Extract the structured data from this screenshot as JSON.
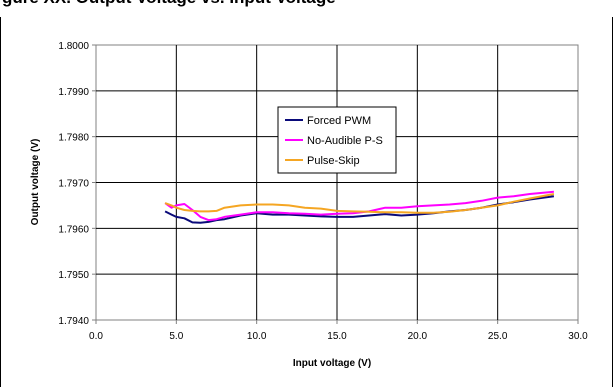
{
  "page": {
    "title_fragment": "gure XX. Output Voltage vs. Input Voltage"
  },
  "chart_data": {
    "type": "line",
    "xlabel": "Input voltage (V)",
    "ylabel": "Output voltage (V)",
    "xlim": [
      0,
      30
    ],
    "ylim": [
      1.794,
      1.8
    ],
    "x_ticks": [
      0,
      5,
      10,
      15,
      20,
      25,
      30
    ],
    "x_tick_labels": [
      "0.0",
      "5.0",
      "10.0",
      "15.0",
      "20.0",
      "25.0",
      "30.0"
    ],
    "y_ticks": [
      1.794,
      1.795,
      1.796,
      1.797,
      1.798,
      1.799,
      1.8
    ],
    "y_tick_labels": [
      "1.7940",
      "1.7950",
      "1.7960",
      "1.7970",
      "1.7980",
      "1.7990",
      "1.8000"
    ],
    "grid": true,
    "legend_position": "center-top",
    "series": [
      {
        "name": "Forced PWM",
        "color": "#0a0a7a",
        "x": [
          4.3,
          4.7,
          5.0,
          5.5,
          6.0,
          6.5,
          7.0,
          7.5,
          8.0,
          9.0,
          10.0,
          11.0,
          12.0,
          13.0,
          14.0,
          15.0,
          16.0,
          17.0,
          18.0,
          19.0,
          20.0,
          21.0,
          22.0,
          23.0,
          24.0,
          25.0,
          26.0,
          27.0,
          28.5
        ],
        "values": [
          1.79637,
          1.7963,
          1.79625,
          1.79622,
          1.79613,
          1.79612,
          1.79614,
          1.79618,
          1.7962,
          1.79628,
          1.79633,
          1.7963,
          1.7963,
          1.79628,
          1.79626,
          1.79625,
          1.79625,
          1.79628,
          1.79631,
          1.79628,
          1.7963,
          1.79633,
          1.79637,
          1.7964,
          1.79645,
          1.79652,
          1.79657,
          1.79663,
          1.7967
        ]
      },
      {
        "name": "No-Audible P-S",
        "color": "#ff00ff",
        "x": [
          4.3,
          4.7,
          5.0,
          5.5,
          6.0,
          6.5,
          7.0,
          7.5,
          8.0,
          9.0,
          10.0,
          11.0,
          12.0,
          13.0,
          14.0,
          15.0,
          16.0,
          17.0,
          18.0,
          19.0,
          20.0,
          21.0,
          22.0,
          23.0,
          24.0,
          25.0,
          26.0,
          27.0,
          28.5
        ],
        "values": [
          1.79655,
          1.79645,
          1.7965,
          1.79653,
          1.7964,
          1.79625,
          1.79618,
          1.7962,
          1.79625,
          1.7963,
          1.79635,
          1.79635,
          1.79633,
          1.79632,
          1.7963,
          1.79632,
          1.79633,
          1.79637,
          1.79645,
          1.79645,
          1.79648,
          1.7965,
          1.79652,
          1.79655,
          1.7966,
          1.79667,
          1.7967,
          1.79675,
          1.7968
        ]
      },
      {
        "name": "Pulse-Skip",
        "color": "#f5a623",
        "x": [
          4.3,
          4.7,
          5.0,
          5.5,
          6.0,
          6.5,
          7.0,
          7.5,
          8.0,
          9.0,
          10.0,
          11.0,
          12.0,
          13.0,
          14.0,
          15.0,
          16.0,
          17.0,
          18.0,
          19.0,
          20.0,
          21.0,
          22.0,
          23.0,
          24.0,
          25.0,
          26.0,
          27.0,
          28.5
        ],
        "values": [
          1.79655,
          1.7965,
          1.79645,
          1.7964,
          1.79638,
          1.79637,
          1.79637,
          1.79638,
          1.79645,
          1.7965,
          1.79652,
          1.79652,
          1.7965,
          1.79645,
          1.79643,
          1.79638,
          1.79637,
          1.79636,
          1.79635,
          1.79635,
          1.79634,
          1.79634,
          1.79636,
          1.7964,
          1.79645,
          1.7965,
          1.79658,
          1.79665,
          1.79675
        ]
      }
    ]
  }
}
